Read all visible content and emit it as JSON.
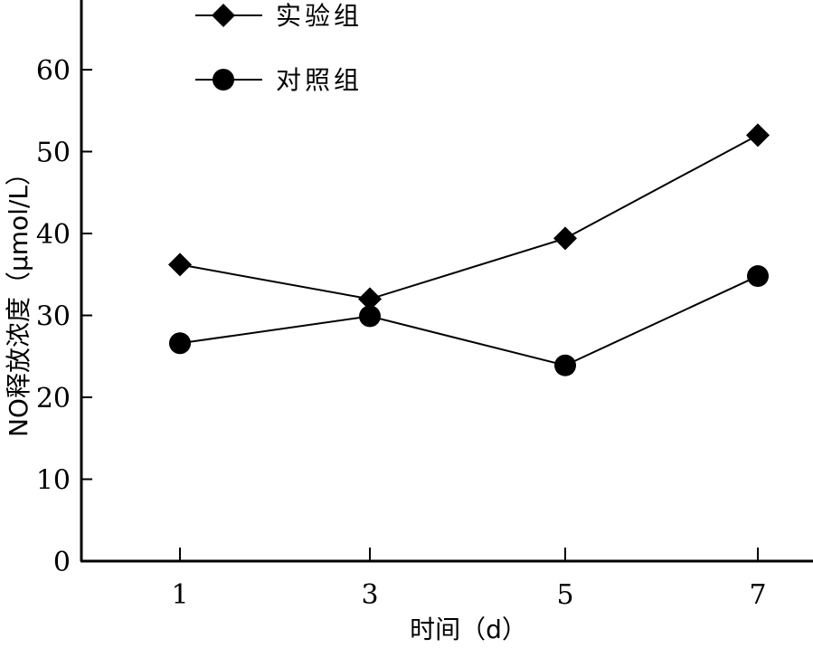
{
  "chart_data": {
    "type": "line",
    "xlabel": "时间（d）",
    "ylabel": "NO释放浓度（μmol/L）",
    "x": [
      1,
      3,
      5,
      7
    ],
    "xticks": [
      "1",
      "3",
      "5",
      "7"
    ],
    "yticks": [
      "0",
      "10",
      "20",
      "30",
      "40",
      "50",
      "60"
    ],
    "ylim": [
      0,
      60
    ],
    "grid": false,
    "legend_position": "top-left",
    "series": [
      {
        "name": "实验组",
        "marker": "diamond",
        "values": [
          36.2,
          32.0,
          39.4,
          52.0
        ]
      },
      {
        "name": "对照组",
        "marker": "circle",
        "values": [
          26.6,
          29.9,
          23.9,
          34.8
        ]
      }
    ],
    "colors": {
      "line": "#000000",
      "axis": "#000000"
    }
  }
}
